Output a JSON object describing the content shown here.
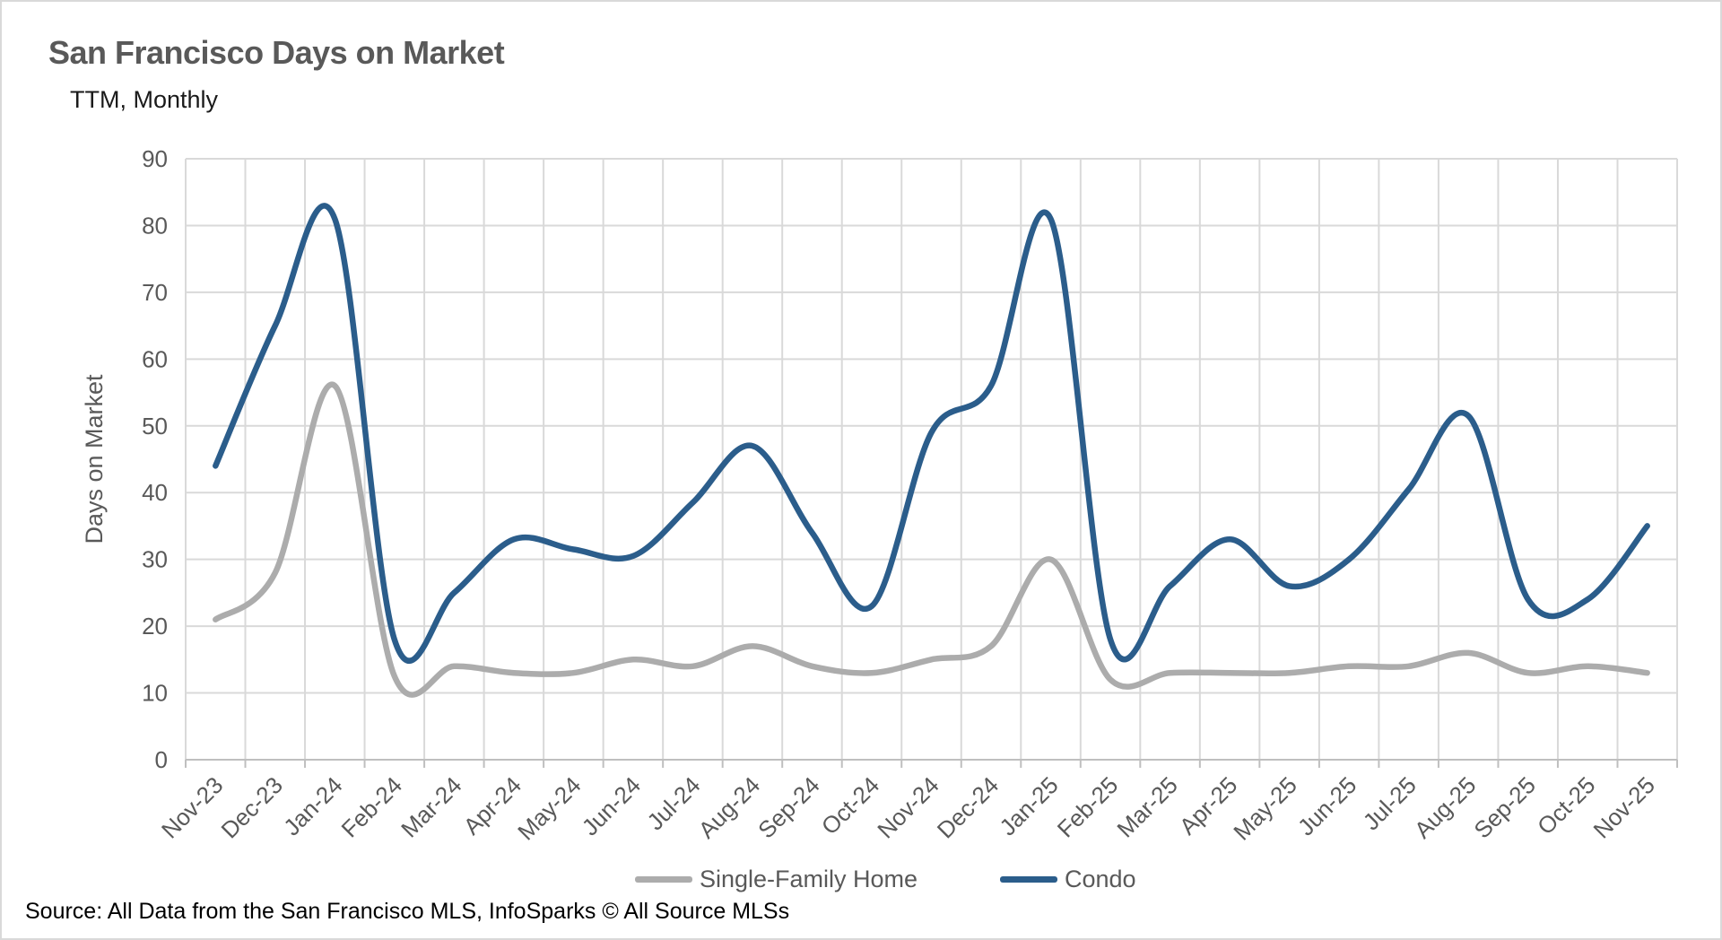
{
  "title": "San Francisco Days on Market",
  "subtitle": "TTM, Monthly",
  "source_note": "Source: All Data from the San Francisco MLS, InfoSparks © All Source MLSs",
  "colors": {
    "single_family": "#ACACAC",
    "condo": "#2B5D8B",
    "gridline": "#D9D9D9",
    "axis_line": "#BFBFBF",
    "axis_text": "#595959",
    "title_text": "#595959"
  },
  "chart_data": {
    "type": "line",
    "title": "San Francisco Days on Market",
    "subtitle": "TTM, Monthly",
    "xlabel": "",
    "ylabel": "Days on Market",
    "ylim": [
      0,
      90
    ],
    "y_tick_step": 10,
    "grid": true,
    "smooth": true,
    "legend_position": "bottom",
    "categories": [
      "Nov-23",
      "Dec-23",
      "Jan-24",
      "Feb-24",
      "Mar-24",
      "Apr-24",
      "May-24",
      "Jun-24",
      "Jul-24",
      "Aug-24",
      "Sep-24",
      "Oct-24",
      "Nov-24",
      "Dec-24",
      "Jan-25",
      "Feb-25",
      "Mar-25",
      "Apr-25",
      "May-25",
      "Jun-25",
      "Jul-25",
      "Aug-25",
      "Sep-25",
      "Oct-25",
      "Nov-25"
    ],
    "series": [
      {
        "name": "Single-Family Home",
        "color": "#ACACAC",
        "values": [
          21,
          28,
          56,
          12.5,
          14,
          13,
          13,
          15,
          14,
          17,
          14,
          13,
          15,
          17,
          30,
          12,
          13,
          13,
          13,
          14,
          14,
          16,
          13,
          14,
          13
        ]
      },
      {
        "name": "Condo",
        "color": "#2B5D8B",
        "values": [
          44,
          65,
          81,
          18,
          25,
          33,
          31.5,
          30.5,
          38.5,
          47,
          34,
          23,
          49,
          56,
          81,
          18,
          26,
          33,
          26,
          30,
          40.5,
          51.5,
          24,
          24,
          35
        ]
      }
    ]
  }
}
